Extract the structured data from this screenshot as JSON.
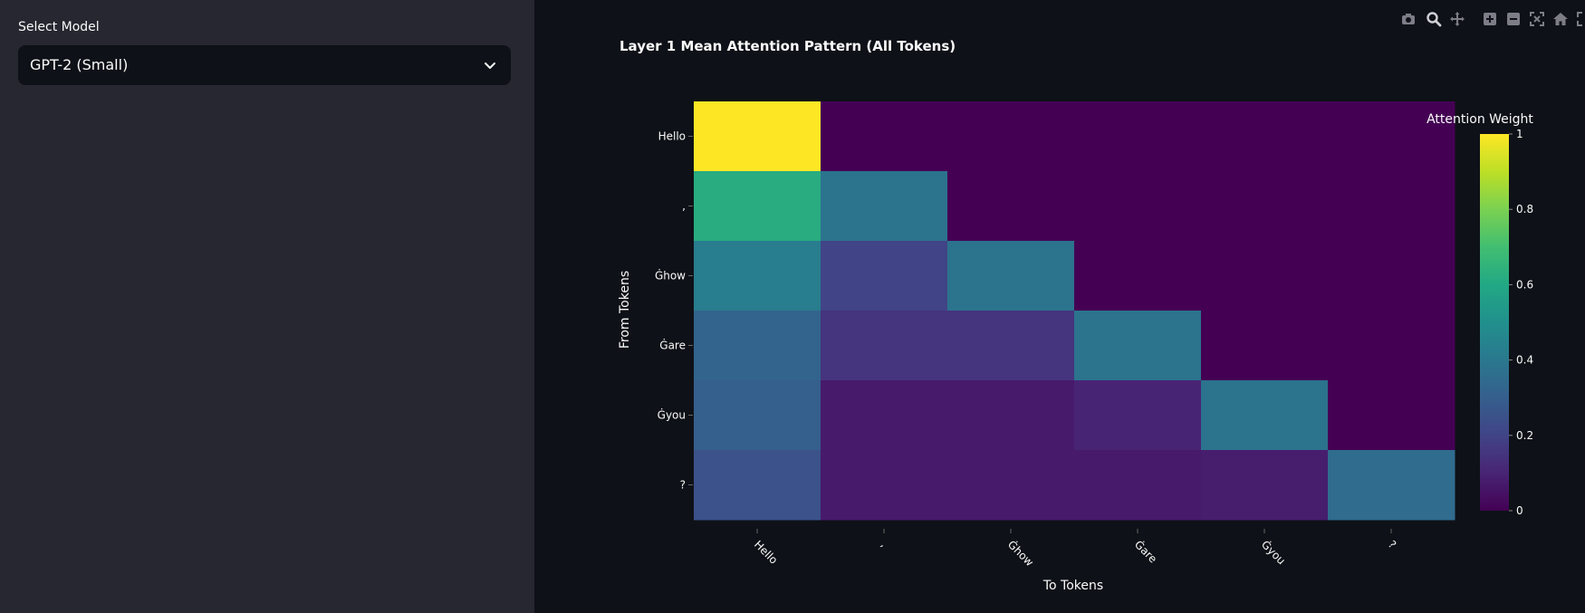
{
  "sidebar": {
    "select_label": "Select Model",
    "select_value": "GPT-2 (Small)"
  },
  "modebar": {
    "icons": [
      "camera-icon",
      "zoom-icon",
      "pan-icon",
      "zoom-in-icon",
      "zoom-out-icon",
      "autoscale-icon",
      "reset-axes-icon",
      "fullscreen-icon"
    ]
  },
  "chart_data": {
    "type": "heatmap",
    "title": "Layer 1 Mean Attention Pattern (All Tokens)",
    "xlabel": "To Tokens",
    "ylabel": "From Tokens",
    "x": [
      "Hello",
      ",",
      "Ġhow",
      "Ġare",
      "Ġyou",
      "?"
    ],
    "y": [
      "Hello",
      ",",
      "Ġhow",
      "Ġare",
      "Ġyou",
      "?"
    ],
    "z": [
      [
        1.0,
        0.0,
        0.0,
        0.0,
        0.0,
        0.0
      ],
      [
        0.62,
        0.38,
        0.0,
        0.0,
        0.0,
        0.0
      ],
      [
        0.42,
        0.2,
        0.38,
        0.0,
        0.0,
        0.0
      ],
      [
        0.32,
        0.15,
        0.15,
        0.38,
        0.0,
        0.0
      ],
      [
        0.3,
        0.07,
        0.07,
        0.1,
        0.38,
        0.0
      ],
      [
        0.25,
        0.07,
        0.07,
        0.07,
        0.08,
        0.35
      ]
    ],
    "colorscale": "Viridis",
    "colorbar": {
      "title": "Attention Weight",
      "range": [
        0,
        1
      ],
      "ticks": [
        "0",
        "0.2",
        "0.4",
        "0.6",
        "0.8",
        "1"
      ]
    }
  }
}
